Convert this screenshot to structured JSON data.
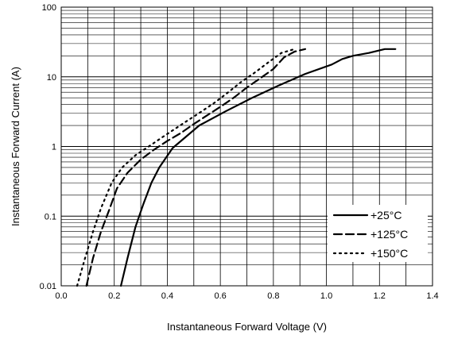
{
  "chart_data": {
    "type": "line",
    "xlabel": "Instantaneous Forward Voltage (V)",
    "ylabel": "Instantaneous Forward Current (A)",
    "xlim": [
      0.0,
      1.4
    ],
    "ylim": [
      0.01,
      100
    ],
    "y_scale": "log",
    "grid": true,
    "legend_placement": "bottom-right",
    "x_ticks": [
      "0.0",
      "0.2",
      "0.4",
      "0.6",
      "0.8",
      "1.0",
      "1.2",
      "1.4"
    ],
    "y_ticks": [
      "0.01",
      "0.1",
      "1",
      "10",
      "100"
    ],
    "series": [
      {
        "name": "+25°C",
        "style": "solid",
        "x": [
          0.225,
          0.25,
          0.28,
          0.31,
          0.34,
          0.37,
          0.42,
          0.52,
          0.62,
          0.72,
          0.82,
          0.92,
          1.02,
          1.06,
          1.1,
          1.16,
          1.22,
          1.26
        ],
        "y": [
          0.01,
          0.025,
          0.07,
          0.15,
          0.3,
          0.5,
          0.95,
          2.0,
          3.2,
          5.0,
          7.5,
          11,
          15,
          18,
          20,
          22,
          25,
          25
        ]
      },
      {
        "name": "+125°C",
        "style": "dashed",
        "x": [
          0.095,
          0.12,
          0.15,
          0.18,
          0.21,
          0.25,
          0.3,
          0.35,
          0.4,
          0.45,
          0.5,
          0.55,
          0.6,
          0.65,
          0.7,
          0.75,
          0.8,
          0.84,
          0.88,
          0.92
        ],
        "y": [
          0.01,
          0.025,
          0.06,
          0.12,
          0.25,
          0.42,
          0.65,
          0.9,
          1.2,
          1.55,
          2.1,
          2.8,
          3.7,
          5.0,
          7.0,
          9.5,
          13,
          19,
          23,
          25
        ]
      },
      {
        "name": "+150°C",
        "style": "dotted",
        "x": [
          0.06,
          0.09,
          0.12,
          0.15,
          0.19,
          0.23,
          0.28,
          0.33,
          0.38,
          0.43,
          0.48,
          0.53,
          0.58,
          0.63,
          0.68,
          0.73,
          0.78,
          0.83,
          0.88
        ],
        "y": [
          0.01,
          0.025,
          0.06,
          0.13,
          0.3,
          0.5,
          0.75,
          1.0,
          1.35,
          1.8,
          2.4,
          3.2,
          4.3,
          6.0,
          8.5,
          11.5,
          16,
          22,
          25
        ]
      }
    ]
  }
}
